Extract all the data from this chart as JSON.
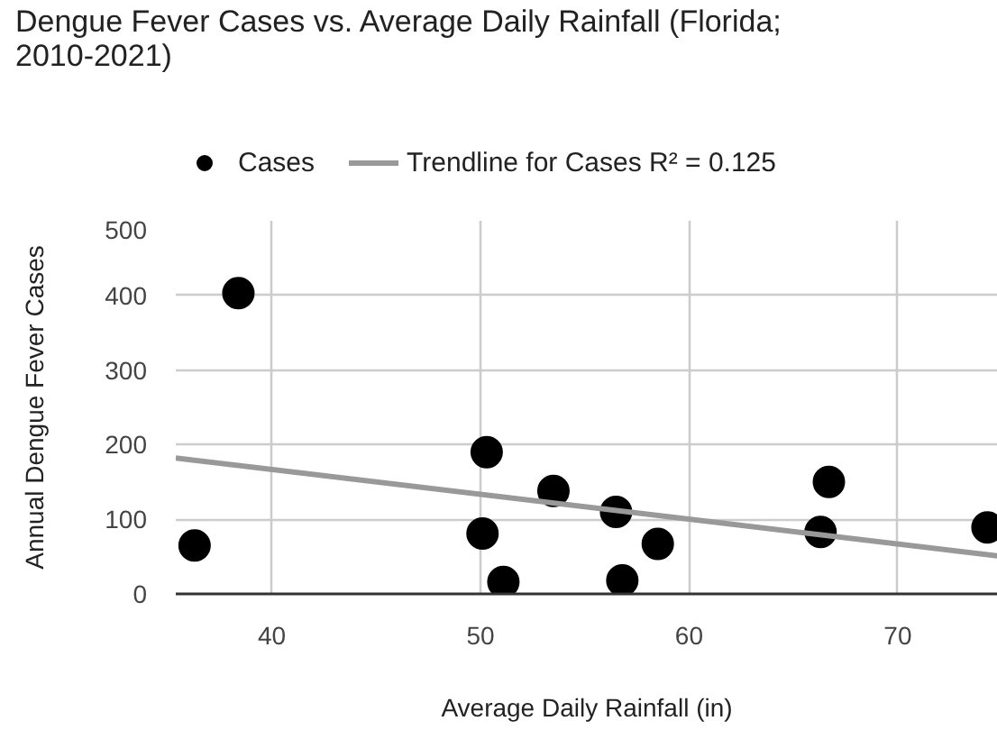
{
  "chart_data": {
    "type": "scatter",
    "title": "Dengue Fever Cases vs. Average Daily Rainfall (Florida; 2010-2021)",
    "xlabel": "Average Daily Rainfall (in)",
    "ylabel": "Annual Dengue Fever Cases",
    "series": [
      {
        "name": "Cases",
        "color": "#000000",
        "marker": "circle",
        "x": [
          36.3,
          38.4,
          50.3,
          50.1,
          51.1,
          53.5,
          56.5,
          56.8,
          58.5,
          66.3,
          66.7,
          74.3
        ],
        "values": [
          65,
          403,
          190,
          81,
          16,
          138,
          110,
          18,
          67,
          83,
          150,
          89
        ]
      },
      {
        "name": "Trendline for Cases R² = 0.125",
        "type": "line",
        "color": "#999999",
        "line_style": "solid",
        "x": [
          35.4,
          74.8
        ],
        "values": [
          182,
          51
        ]
      }
    ],
    "xlim": [
      35.4,
      74.8
    ],
    "ylim": [
      0,
      500
    ],
    "xticks": [
      40,
      50,
      60,
      70
    ],
    "yticks": [
      0,
      100,
      200,
      300,
      400,
      500
    ],
    "grid": true,
    "legend": "top"
  }
}
